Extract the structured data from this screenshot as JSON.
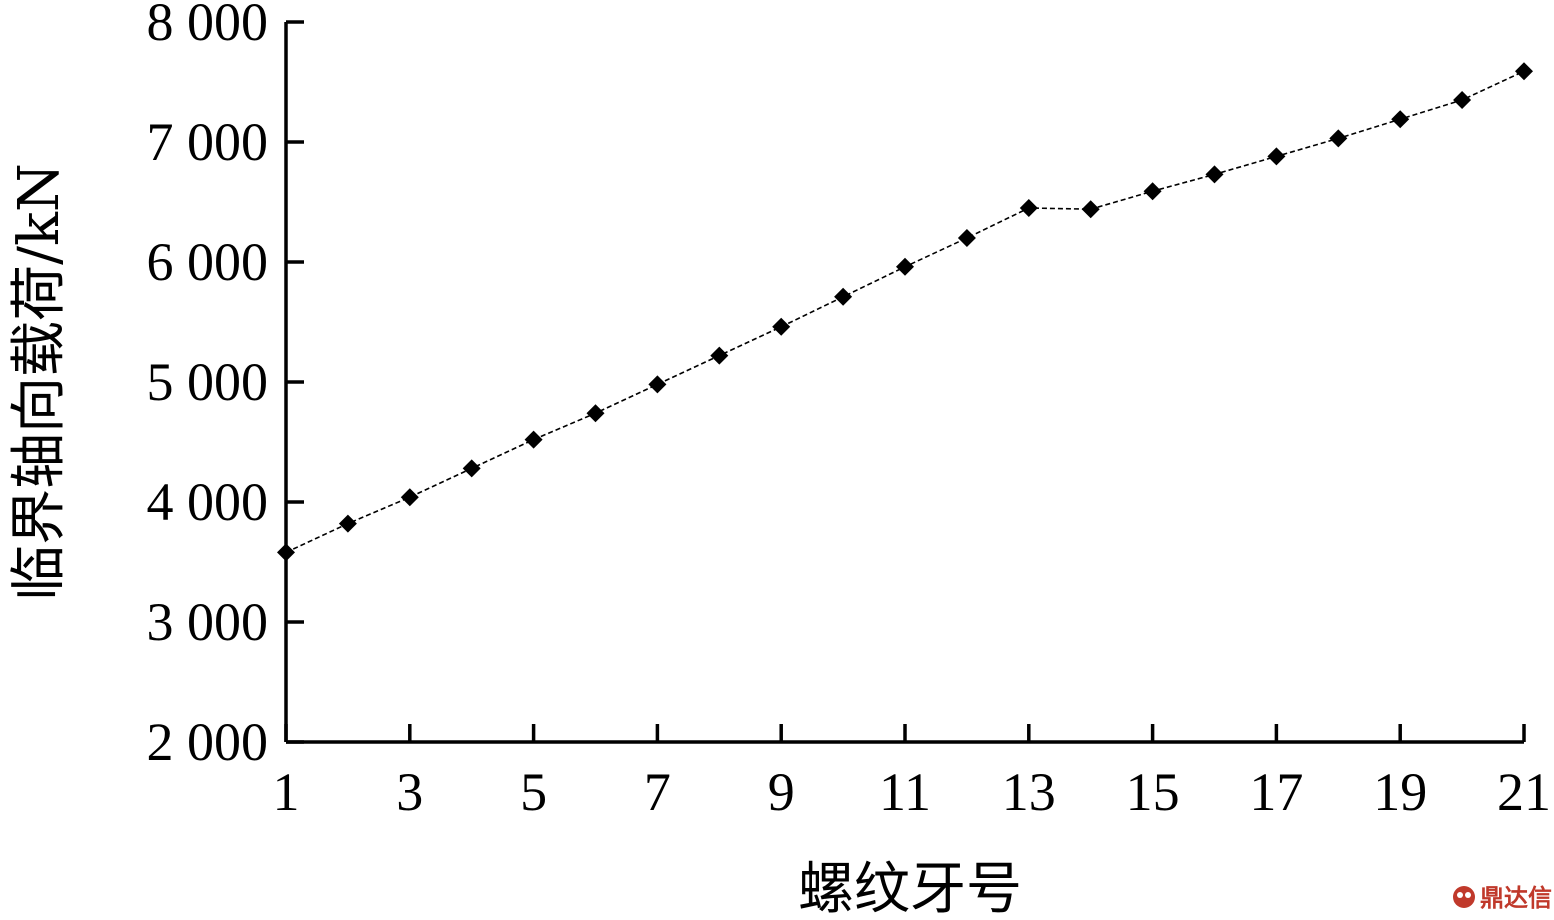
{
  "chart_data": {
    "type": "line",
    "xlabel": "螺纹牙号",
    "ylabel": "临界轴向载荷/kN",
    "xlim": [
      1,
      21
    ],
    "ylim": [
      2000,
      8000
    ],
    "x_ticks": [
      1,
      3,
      5,
      7,
      9,
      11,
      13,
      15,
      17,
      19,
      21
    ],
    "x_tick_labels": [
      "1",
      "3",
      "5",
      "7",
      "9",
      "11",
      "13",
      "15",
      "17",
      "19",
      "21"
    ],
    "y_ticks": [
      2000,
      3000,
      4000,
      5000,
      6000,
      7000,
      8000
    ],
    "y_tick_labels": [
      "2 000",
      "3 000",
      "4 000",
      "5 000",
      "6 000",
      "7 000",
      "8 000"
    ],
    "grid": false,
    "marker": "diamond",
    "series": [
      {
        "x": [
          1,
          2,
          3,
          4,
          5,
          6,
          7,
          8,
          9,
          10,
          11,
          12,
          13,
          14,
          15,
          16,
          17,
          18,
          19,
          20,
          21
        ],
        "values": [
          3580,
          3820,
          4040,
          4280,
          4520,
          4740,
          4980,
          5220,
          5460,
          5710,
          5960,
          6200,
          6450,
          6440,
          6590,
          6730,
          6880,
          7030,
          7190,
          7350,
          7590
        ]
      }
    ]
  },
  "watermark": {
    "logo_icon": "dingdaxin-logo-icon",
    "text": "鼎达信",
    "color": "#c0392b"
  }
}
